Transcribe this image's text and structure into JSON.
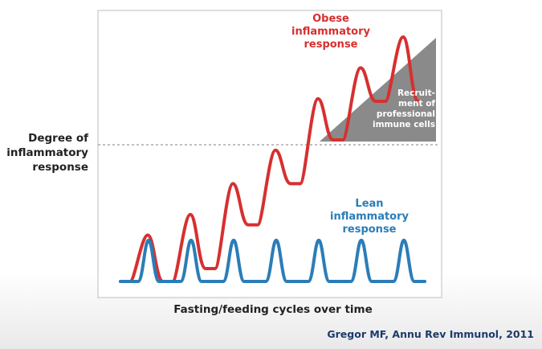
{
  "chart_data": {
    "type": "line",
    "title": "",
    "xlabel": "Fasting/feeding cycles over time",
    "ylabel": "Degree of inflammatory response",
    "grid": false,
    "threshold_line": true,
    "series": [
      {
        "name": "Obese inflammatory response",
        "color": "#d63030",
        "cycles": 7,
        "troughs": [
          0,
          0,
          0.05,
          0.22,
          0.38,
          0.55,
          0.7
        ],
        "peaks": [
          0.18,
          0.26,
          0.38,
          0.51,
          0.71,
          0.83,
          0.95
        ]
      },
      {
        "name": "Lean inflammatory response",
        "color": "#2a7db8",
        "cycles": 7,
        "troughs": [
          0,
          0,
          0,
          0,
          0,
          0,
          0
        ],
        "peaks": [
          0.16,
          0.16,
          0.16,
          0.16,
          0.16,
          0.16,
          0.16
        ]
      }
    ],
    "annotations": {
      "obese": [
        "Obese",
        "inflammatory",
        "response"
      ],
      "lean": [
        "Lean",
        "inflammatory",
        "response"
      ],
      "recruitment": [
        "Recruit-",
        "ment of",
        "professional",
        "immune cells"
      ],
      "recruitment_color": "#8a8a8a"
    }
  },
  "labels": {
    "y_axis_lines": [
      "Degree of",
      "inflammatory",
      "response"
    ],
    "x_axis": "Fasting/feeding cycles over time",
    "citation": "Gregor MF, Annu Rev Immunol, 2011"
  }
}
